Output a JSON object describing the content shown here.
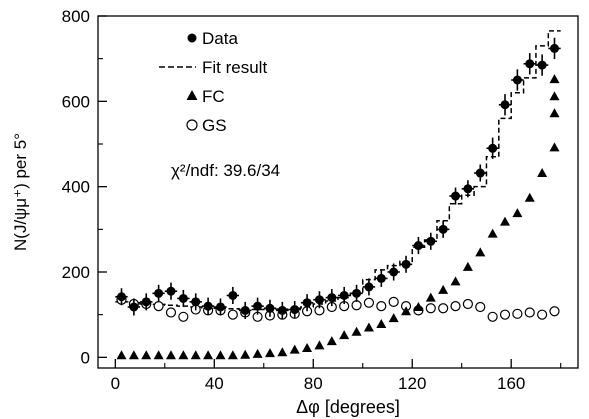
{
  "chart_data": {
    "type": "scatter",
    "xlabel": "Δφ  [degrees]",
    "ylabel": "N(J/ψμ⁺) per 5°",
    "xlim": [
      -7,
      187
    ],
    "ylim": [
      -25,
      800
    ],
    "xticks": [
      0,
      40,
      80,
      120,
      160
    ],
    "yticks": [
      0,
      200,
      400,
      600,
      800
    ],
    "grid": false,
    "legend_position": "top-left",
    "legend": [
      {
        "label": "Data",
        "marker": "filled-circle"
      },
      {
        "label": "Fit result",
        "marker": "dashed-line"
      },
      {
        "label": "FC",
        "marker": "filled-triangle"
      },
      {
        "label": "GS",
        "marker": "open-circle"
      }
    ],
    "annotation": "χ²/ndf: 39.6/34",
    "x": [
      2.5,
      7.5,
      12.5,
      17.5,
      22.5,
      27.5,
      32.5,
      37.5,
      42.5,
      47.5,
      52.5,
      57.5,
      62.5,
      67.5,
      72.5,
      77.5,
      82.5,
      87.5,
      92.5,
      97.5,
      102.5,
      107.5,
      112.5,
      117.5,
      122.5,
      127.5,
      132.5,
      137.5,
      142.5,
      147.5,
      152.5,
      157.5,
      162.5,
      167.5,
      172.5,
      177.5
    ],
    "series": [
      {
        "name": "Data",
        "marker": "filled-circle",
        "color": "#000000",
        "values": [
          142,
          118,
          130,
          150,
          155,
          138,
          130,
          120,
          118,
          145,
          110,
          120,
          115,
          110,
          112,
          128,
          135,
          140,
          145,
          150,
          165,
          185,
          200,
          218,
          262,
          272,
          300,
          378,
          395,
          432,
          490,
          592,
          650,
          688,
          685,
          724
        ],
        "errors": [
          20,
          20,
          20,
          20,
          20,
          20,
          20,
          20,
          20,
          20,
          20,
          20,
          20,
          20,
          20,
          20,
          20,
          20,
          20,
          20,
          20,
          20,
          20,
          20,
          20,
          20,
          20,
          20,
          20,
          20,
          25,
          25,
          25,
          25,
          25,
          25
        ]
      },
      {
        "name": "Fit result",
        "style": "dashed-step",
        "color": "#000000",
        "values": [
          130,
          128,
          125,
          124,
          122,
          120,
          118,
          116,
          115,
          114,
          112,
          112,
          112,
          113,
          115,
          118,
          125,
          132,
          140,
          150,
          182,
          205,
          215,
          225,
          258,
          275,
          320,
          360,
          380,
          400,
          470,
          560,
          620,
          655,
          730,
          765
        ]
      },
      {
        "name": "FC",
        "marker": "filled-triangle",
        "color": "#000000",
        "values": [
          5,
          5,
          5,
          5,
          5,
          5,
          5,
          5,
          5,
          5,
          6,
          8,
          10,
          12,
          18,
          22,
          28,
          38,
          52,
          60,
          70,
          78,
          92,
          108,
          118,
          140,
          158,
          178,
          212,
          246,
          290,
          318,
          338,
          374,
          432,
          492,
          572,
          612,
          652
        ]
      },
      {
        "name": "GS",
        "marker": "open-circle",
        "color": "#000000",
        "values": [
          135,
          125,
          125,
          120,
          105,
          95,
          112,
          110,
          110,
          100,
          105,
          95,
          98,
          100,
          102,
          108,
          110,
          118,
          120,
          122,
          128,
          120,
          130,
          120,
          110,
          115,
          115,
          120,
          125,
          118,
          95,
          100,
          102,
          105,
          100,
          108
        ]
      }
    ],
    "x_fc": [
      2.5,
      7.5,
      12.5,
      17.5,
      22.5,
      27.5,
      32.5,
      37.5,
      42.5,
      47.5,
      52.5,
      57.5,
      62.5,
      67.5,
      72.5,
      77.5,
      82.5,
      87.5,
      92.5,
      97.5,
      102.5,
      107.5,
      112.5,
      117.5,
      122.5,
      127.5,
      132.5,
      137.5,
      142.5,
      147.5,
      152.5,
      157.5,
      162.5,
      167.5,
      172.5,
      177.5,
      177.5,
      177.5,
      177.5
    ]
  }
}
